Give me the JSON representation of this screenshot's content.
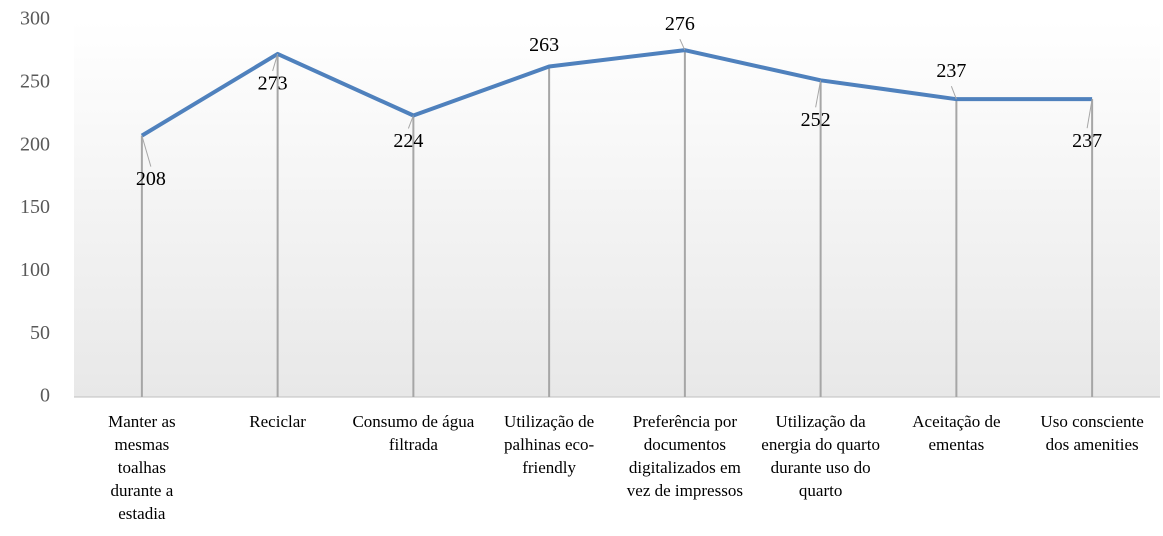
{
  "chart_data": {
    "type": "line",
    "categories": [
      "Manter as mesmas toalhas durante a estadia",
      "Reciclar",
      "Consumo de água filtrada",
      "Utilização de palhinas eco-friendly",
      "Preferência por documentos digitalizados em vez de impressos",
      "Utilização da energia do quarto durante uso do quarto",
      "Aceitação de ementas",
      "Uso consciente dos amenities"
    ],
    "series": [
      {
        "color": "#4f81bd",
        "values": [
          208,
          273,
          224,
          263,
          276,
          252,
          237,
          237
        ]
      }
    ],
    "ylim": [
      0,
      300
    ],
    "yticks": [
      0,
      50,
      100,
      150,
      200,
      250,
      300
    ],
    "grid": false
  }
}
